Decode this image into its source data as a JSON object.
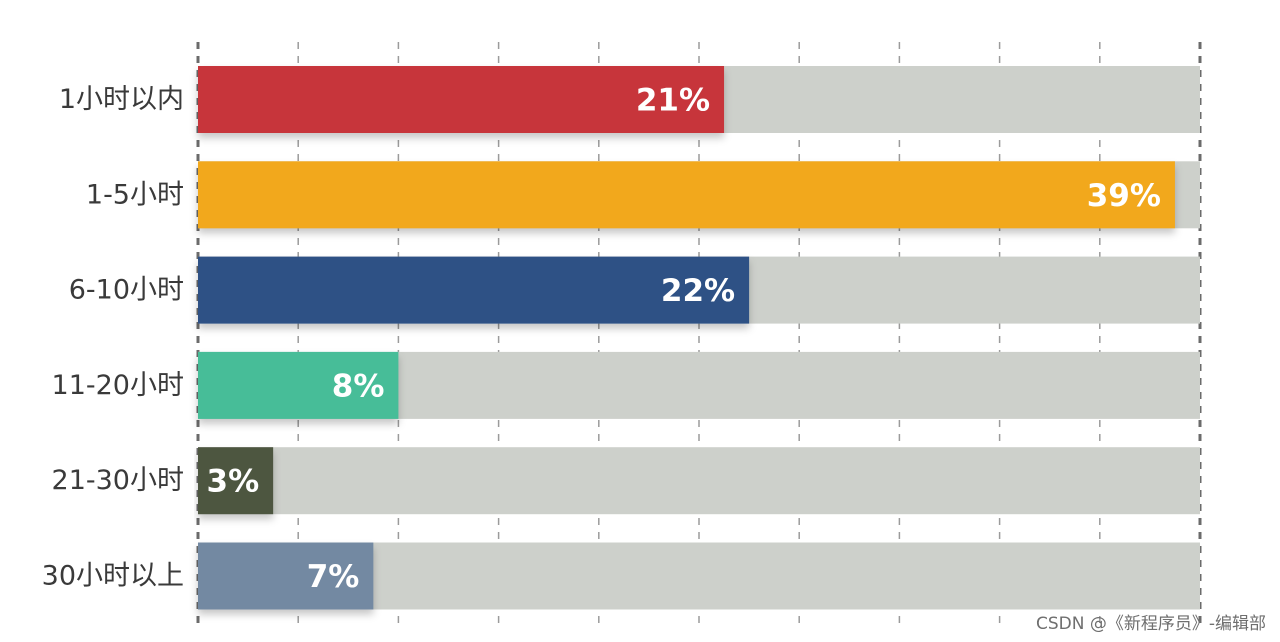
{
  "chart_data": {
    "type": "bar",
    "orientation": "horizontal",
    "categories": [
      "1小时以内",
      "1-5小时",
      "6-10小时",
      "11-20小时",
      "21-30小时",
      "30小时以上"
    ],
    "values": [
      21,
      39,
      22,
      8,
      3,
      7
    ],
    "value_labels": [
      "21%",
      "39%",
      "22%",
      "8%",
      "3%",
      "7%"
    ],
    "xlim": [
      0,
      40
    ],
    "x_gridlines": [
      0,
      4,
      8,
      12,
      16,
      20,
      24,
      28,
      32,
      36,
      40
    ],
    "grid": "vertical dashed",
    "track_color": "#cdd0cb",
    "colors": [
      "#c7343b",
      "#f2a81f",
      "#2f5185",
      "#47bd98",
      "#4d5641",
      "#7389a2"
    ],
    "title": "",
    "xlabel": "",
    "ylabel": ""
  },
  "watermark": "CSDN @《新程序员》-编辑部"
}
